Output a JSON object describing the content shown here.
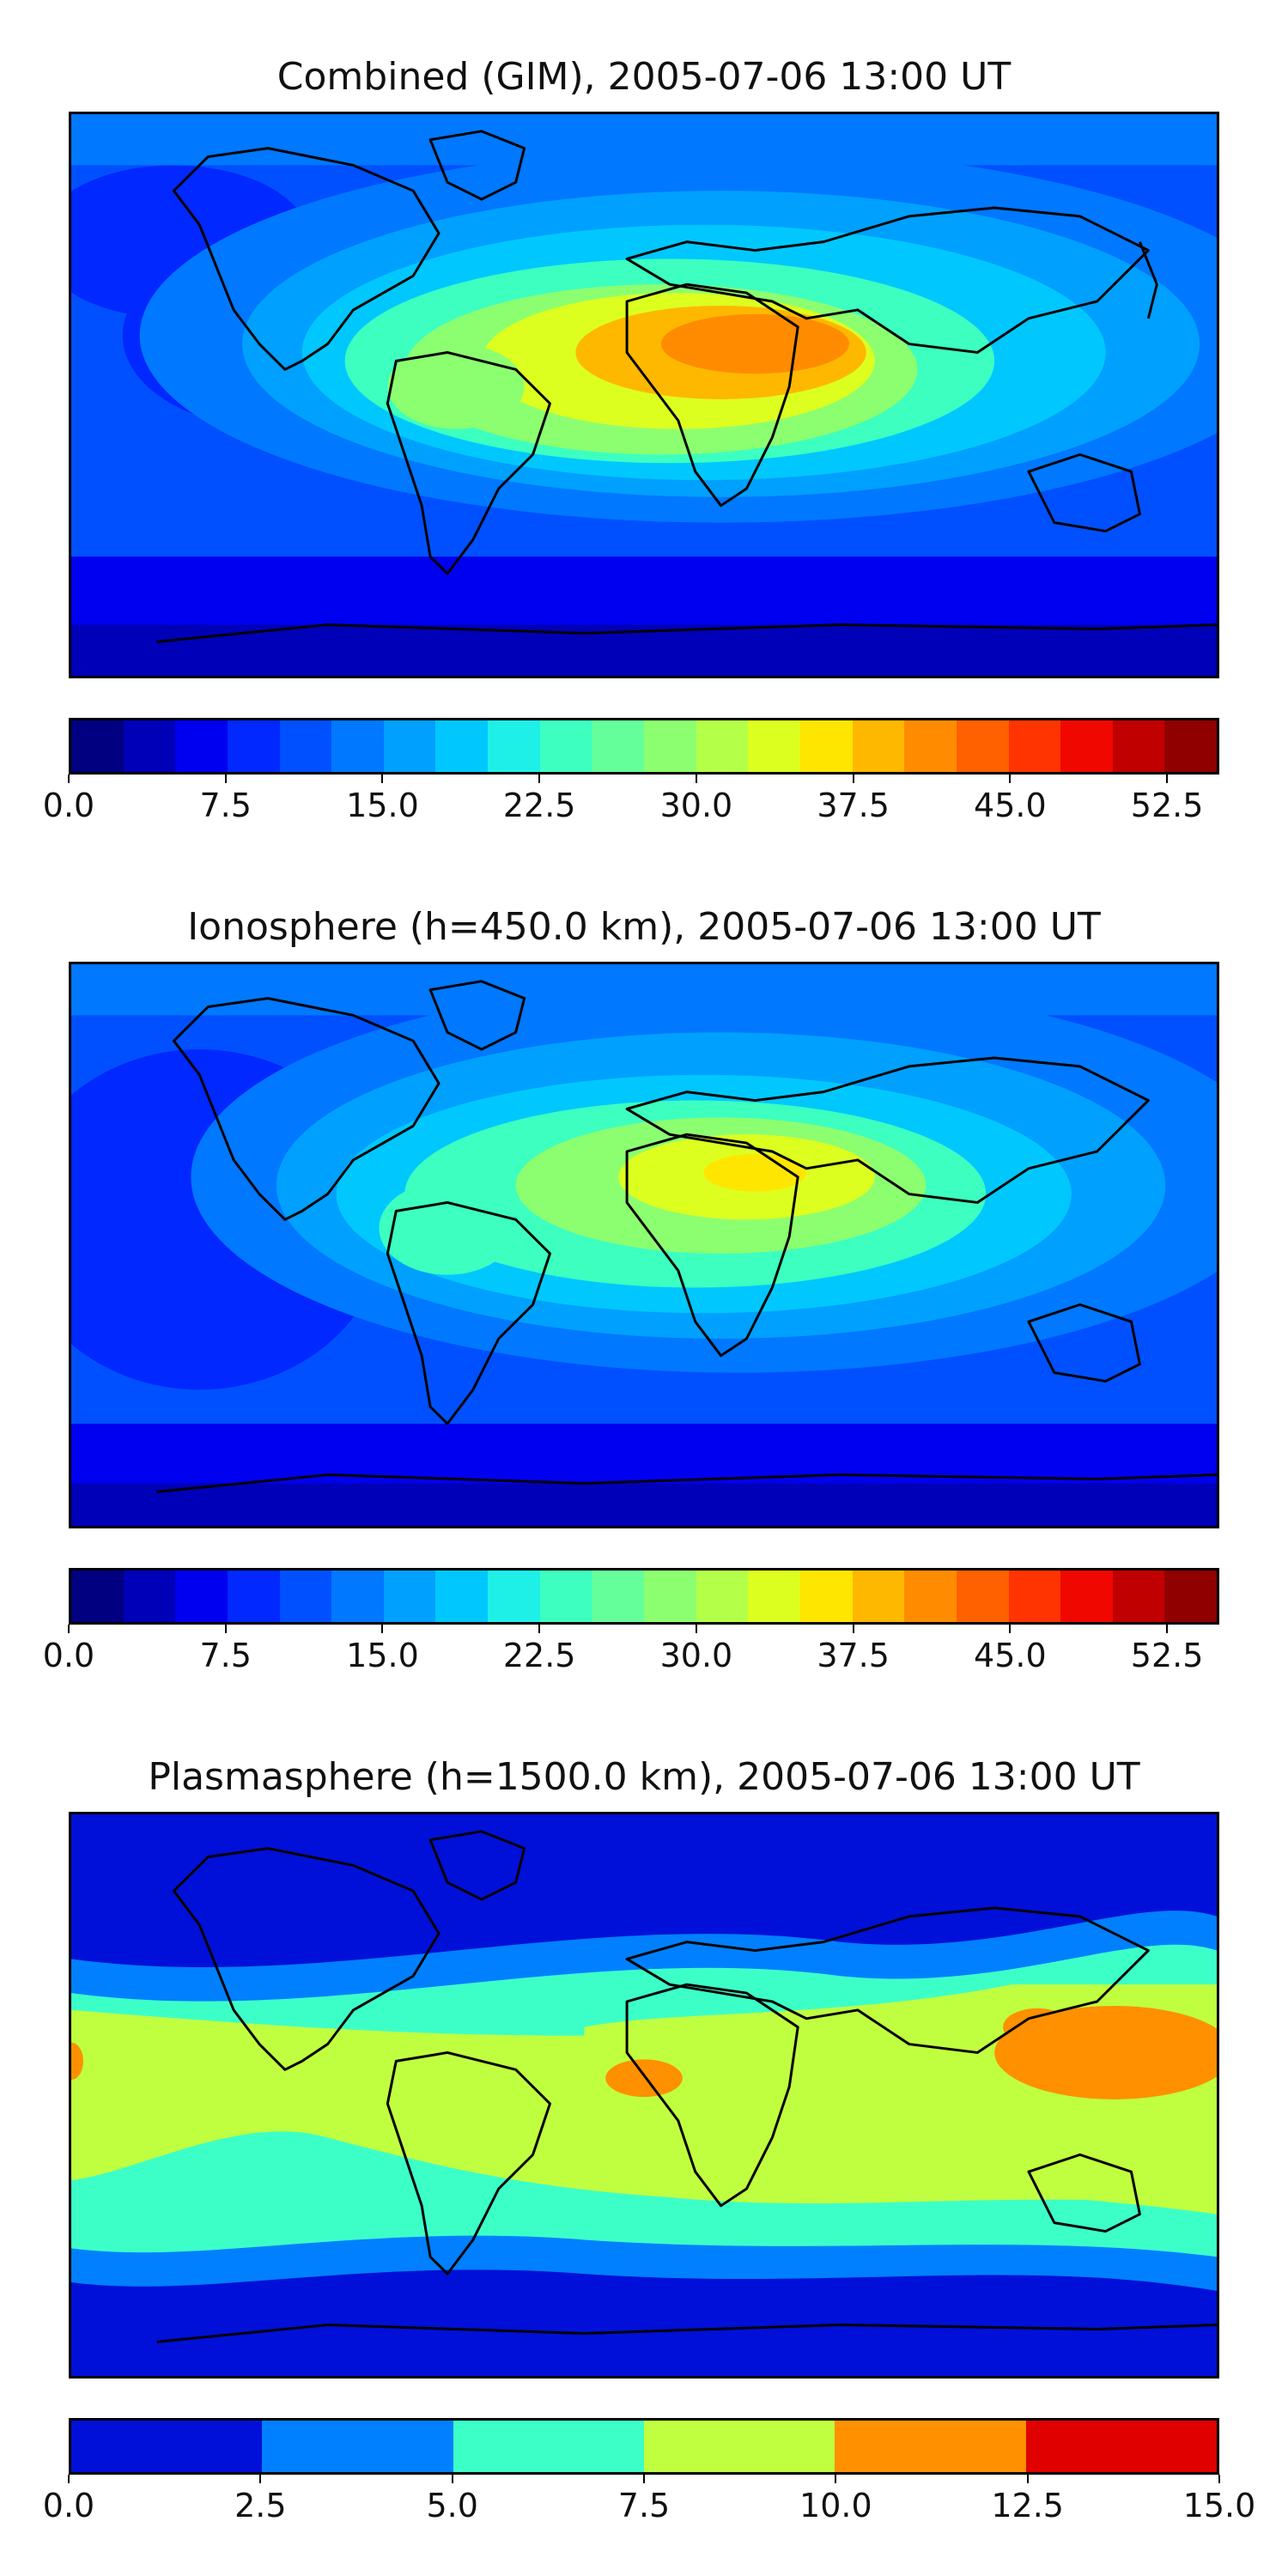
{
  "panels": [
    {
      "title": "Combined (GIM), 2005-07-06 13:00 UT",
      "colorbar_colors": [
        "#000080",
        "#0000b8",
        "#0000f0",
        "#0028ff",
        "#0050ff",
        "#0078ff",
        "#00a0ff",
        "#00c8ff",
        "#1ef0e8",
        "#3cffc0",
        "#64ff9a",
        "#8cff70",
        "#b4ff48",
        "#dcff20",
        "#ffe600",
        "#ffb800",
        "#ff8c00",
        "#ff6000",
        "#ff3400",
        "#f00800",
        "#c00000",
        "#900000"
      ],
      "tick_labels": [
        "0.0",
        "7.5",
        "15.0",
        "22.5",
        "30.0",
        "37.5",
        "45.0",
        "52.5"
      ],
      "tick_values": [
        0,
        7.5,
        15,
        22.5,
        30,
        37.5,
        45,
        52.5
      ],
      "range": [
        0,
        55
      ]
    },
    {
      "title": "Ionosphere  (h=450.0 km), 2005-07-06 13:00 UT",
      "colorbar_colors": [
        "#000080",
        "#0000b8",
        "#0000f0",
        "#0028ff",
        "#0050ff",
        "#0078ff",
        "#00a0ff",
        "#00c8ff",
        "#1ef0e8",
        "#3cffc0",
        "#64ff9a",
        "#8cff70",
        "#b4ff48",
        "#dcff20",
        "#ffe600",
        "#ffb800",
        "#ff8c00",
        "#ff6000",
        "#ff3400",
        "#f00800",
        "#c00000",
        "#900000"
      ],
      "tick_labels": [
        "0.0",
        "7.5",
        "15.0",
        "22.5",
        "30.0",
        "37.5",
        "45.0",
        "52.5"
      ],
      "tick_values": [
        0,
        7.5,
        15,
        22.5,
        30,
        37.5,
        45,
        52.5
      ],
      "range": [
        0,
        55
      ]
    },
    {
      "title": "Plasmasphere (h=1500.0 km), 2005-07-06 13:00 UT",
      "colorbar_colors": [
        "#0010d8",
        "#0080ff",
        "#3cffc8",
        "#c0ff40",
        "#ff9000",
        "#e00000"
      ],
      "tick_labels": [
        "0.0",
        "2.5",
        "5.0",
        "7.5",
        "10.0",
        "12.5",
        "15.0"
      ],
      "tick_values": [
        0,
        2.5,
        5,
        7.5,
        10,
        12.5,
        15
      ],
      "range": [
        0,
        15
      ]
    }
  ]
}
